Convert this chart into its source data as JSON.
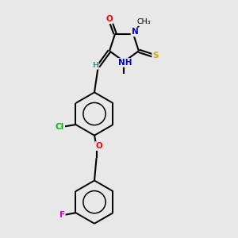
{
  "bg_color": "#e8e8e8",
  "bond_color": "#000000",
  "atom_colors": {
    "O": "#ff0000",
    "N": "#0000cc",
    "S": "#ccaa00",
    "Cl": "#00bb00",
    "F": "#cc00cc",
    "H": "#558888",
    "C": "#000000"
  }
}
